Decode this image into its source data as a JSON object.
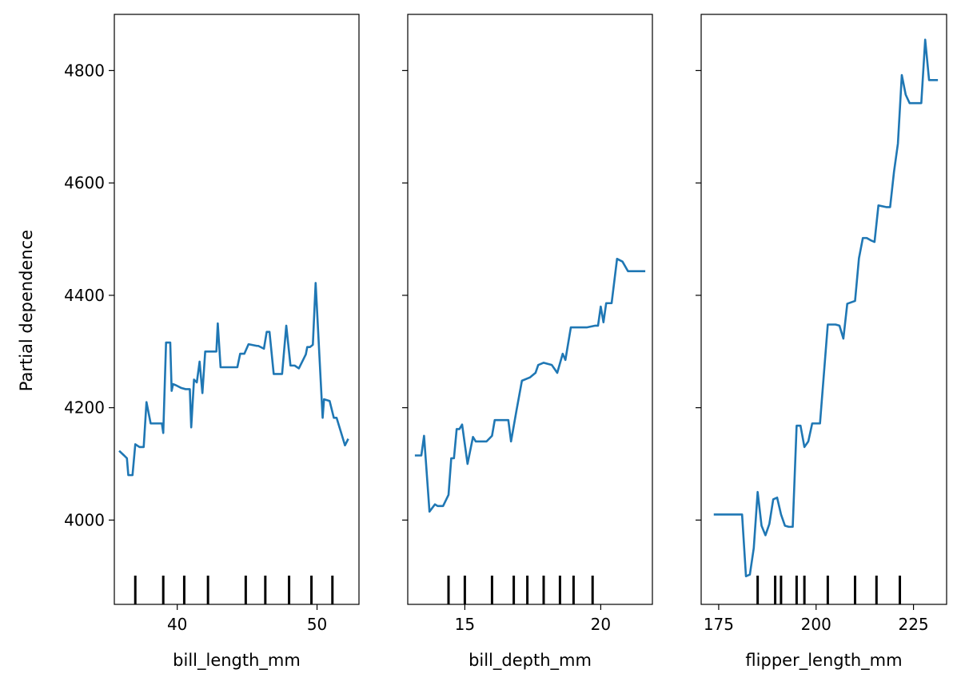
{
  "figure": {
    "ylabel": "Partial dependence"
  },
  "chart_data": [
    {
      "type": "line",
      "xlabel": "bill_length_mm",
      "ylabel": "Partial dependence",
      "xlim": [
        35.5,
        53.0
      ],
      "ylim": [
        3850,
        4900
      ],
      "xticks": [
        40,
        50
      ],
      "xtick_labels": [
        "40",
        "50"
      ],
      "yticks": [
        4000,
        4200,
        4400,
        4600,
        4800
      ],
      "ytick_labels": [
        "4000",
        "4200",
        "4400",
        "4600",
        "4800"
      ],
      "line_color": "#1f77b4",
      "grid": false,
      "series": [
        {
          "x": [
            35.9,
            36.2,
            36.4,
            36.5,
            36.8,
            37.0,
            37.3,
            37.6,
            37.8,
            38.1,
            38.5,
            38.9,
            39.0,
            39.2,
            39.5,
            39.6,
            39.7,
            39.9,
            40.3,
            40.6,
            40.9,
            41.0,
            41.2,
            41.4,
            41.6,
            41.8,
            42.0,
            42.3,
            42.8,
            42.9,
            43.1,
            43.5,
            44.3,
            44.5,
            44.8,
            45.1,
            45.7,
            45.8,
            46.2,
            46.4,
            46.6,
            46.9,
            47.5,
            47.8,
            48.1,
            48.4,
            48.7,
            49.2,
            49.3,
            49.5,
            49.7,
            49.9,
            50.4,
            50.5,
            50.9,
            51.2,
            51.4,
            52.0,
            52.2
          ],
          "y": [
            4122,
            4115,
            4110,
            4080,
            4080,
            4135,
            4130,
            4130,
            4210,
            4172,
            4172,
            4172,
            4155,
            4316,
            4316,
            4230,
            4242,
            4240,
            4235,
            4233,
            4233,
            4165,
            4250,
            4245,
            4282,
            4226,
            4300,
            4300,
            4300,
            4350,
            4272,
            4272,
            4272,
            4296,
            4296,
            4313,
            4310,
            4310,
            4305,
            4335,
            4335,
            4260,
            4260,
            4346,
            4275,
            4275,
            4270,
            4295,
            4308,
            4308,
            4312,
            4422,
            4182,
            4215,
            4212,
            4182,
            4182,
            4133,
            4143
          ]
        }
      ],
      "rug": [
        37.0,
        39.0,
        40.5,
        42.2,
        44.9,
        46.3,
        48.0,
        49.6,
        51.1
      ]
    },
    {
      "type": "line",
      "xlabel": "bill_depth_mm",
      "ylabel": "",
      "xlim": [
        12.9,
        21.9
      ],
      "ylim": [
        3850,
        4900
      ],
      "xticks": [
        15,
        20
      ],
      "xtick_labels": [
        "15",
        "20"
      ],
      "yticks": [
        4000,
        4200,
        4400,
        4600,
        4800
      ],
      "ytick_labels": [],
      "line_color": "#1f77b4",
      "grid": false,
      "series": [
        {
          "x": [
            13.2,
            13.4,
            13.5,
            13.7,
            13.9,
            14.0,
            14.2,
            14.4,
            14.5,
            14.6,
            14.7,
            14.8,
            14.9,
            15.1,
            15.3,
            15.4,
            15.6,
            15.8,
            16.0,
            16.1,
            16.2,
            16.4,
            16.6,
            16.7,
            16.9,
            17.1,
            17.3,
            17.4,
            17.6,
            17.7,
            17.9,
            18.2,
            18.4,
            18.6,
            18.7,
            18.9,
            19.0,
            19.2,
            19.5,
            19.8,
            19.9,
            20.0,
            20.1,
            20.2,
            20.4,
            20.6,
            20.8,
            21.0,
            21.3,
            21.6
          ],
          "y": [
            4115,
            4115,
            4150,
            4015,
            4028,
            4025,
            4025,
            4045,
            4110,
            4110,
            4162,
            4162,
            4170,
            4100,
            4148,
            4140,
            4140,
            4140,
            4150,
            4178,
            4178,
            4178,
            4178,
            4140,
            4195,
            4248,
            4252,
            4254,
            4262,
            4276,
            4280,
            4276,
            4262,
            4296,
            4285,
            4343,
            4343,
            4343,
            4343,
            4346,
            4346,
            4380,
            4352,
            4386,
            4386,
            4465,
            4460,
            4443,
            4443,
            4443
          ]
        }
      ],
      "rug": [
        14.4,
        15.0,
        16.0,
        16.8,
        17.3,
        17.9,
        18.5,
        19.0,
        19.7
      ]
    },
    {
      "type": "line",
      "xlabel": "flipper_length_mm",
      "ylabel": "",
      "xlim": [
        170.5,
        233.5
      ],
      "ylim": [
        3850,
        4900
      ],
      "xticks": [
        175,
        200,
        225
      ],
      "xtick_labels": [
        "175",
        "200",
        "225"
      ],
      "yticks": [
        4000,
        4200,
        4400,
        4600,
        4800
      ],
      "ytick_labels": [],
      "line_color": "#1f77b4",
      "grid": false,
      "series": [
        {
          "x": [
            174,
            181,
            182,
            183,
            184,
            185,
            186,
            187,
            188,
            189,
            190,
            191,
            192,
            193,
            194,
            195,
            196,
            197,
            198,
            199,
            201,
            203,
            205,
            206,
            207,
            208,
            210,
            211,
            212,
            213,
            214,
            215,
            216,
            218,
            219,
            220,
            221,
            222,
            223,
            224,
            225,
            226,
            227,
            228,
            229,
            230,
            231
          ],
          "y": [
            4010,
            4010,
            3900,
            3903,
            3950,
            4050,
            3990,
            3973,
            3993,
            4037,
            4040,
            4010,
            3990,
            3988,
            3988,
            4168,
            4168,
            4130,
            4140,
            4172,
            4172,
            4348,
            4348,
            4346,
            4323,
            4385,
            4390,
            4466,
            4502,
            4502,
            4498,
            4495,
            4560,
            4557,
            4557,
            4620,
            4670,
            4792,
            4757,
            4742,
            4742,
            4742,
            4742,
            4855,
            4783,
            4783,
            4783
          ]
        }
      ],
      "rug": [
        185,
        189.5,
        191,
        195,
        197,
        203,
        210,
        215.5,
        221.5
      ]
    }
  ]
}
